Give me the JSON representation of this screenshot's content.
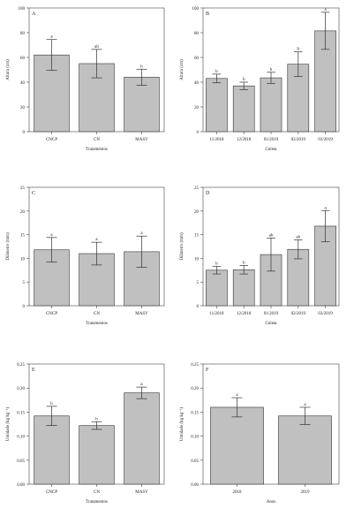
{
  "chart_data": [
    {
      "panel": "A",
      "type": "bar",
      "categories": [
        "CNCP",
        "CN",
        "MASV"
      ],
      "values": [
        62,
        55,
        44
      ],
      "errors": [
        12.5,
        11.5,
        6.5
      ],
      "letters": [
        "a",
        "ab",
        "b"
      ],
      "xlabel": "Tratamentos",
      "ylabel": "Altura (cm)",
      "ylim": [
        0,
        100
      ],
      "yticks": [
        "0",
        "20",
        "40",
        "60",
        "80",
        "100"
      ]
    },
    {
      "panel": "B",
      "type": "bar",
      "categories": [
        "11/2018",
        "12/2018",
        "01/2019",
        "02/2019",
        "03/2019"
      ],
      "values": [
        43,
        37,
        43.5,
        54.5,
        81.5
      ],
      "errors": [
        3.5,
        3,
        4.5,
        10,
        15
      ],
      "letters": [
        "b",
        "b",
        "b",
        "b",
        "a"
      ],
      "xlabel": "Coleta",
      "ylabel": "Altura (cm)",
      "ylim": [
        0,
        100
      ],
      "yticks": [
        "0",
        "20",
        "40",
        "60",
        "80",
        "100"
      ]
    },
    {
      "panel": "C",
      "type": "bar",
      "categories": [
        "CNCP",
        "CN",
        "MASV"
      ],
      "values": [
        11.8,
        11,
        11.4
      ],
      "errors": [
        2.6,
        2.4,
        3.3
      ],
      "letters": [
        "a",
        "a",
        "a"
      ],
      "xlabel": "Tratamentos",
      "ylabel": "Diâmetro (mm)",
      "ylim": [
        0,
        25
      ],
      "yticks": [
        "0",
        "5",
        "10",
        "15",
        "20",
        "25"
      ]
    },
    {
      "panel": "D",
      "type": "bar",
      "categories": [
        "11/2018",
        "12/2018",
        "01/2019",
        "02/2019",
        "03/2019"
      ],
      "values": [
        7.5,
        7.6,
        10.8,
        11.9,
        16.8
      ],
      "errors": [
        0.8,
        0.9,
        3.5,
        2,
        3.3
      ],
      "letters": [
        "b",
        "b",
        "ab",
        "ab",
        "a"
      ],
      "xlabel": "Coleta",
      "ylabel": "Diâmetro (mm)",
      "ylim": [
        0,
        25
      ],
      "yticks": [
        "0",
        "5",
        "10",
        "15",
        "20",
        "25"
      ]
    },
    {
      "panel": "E",
      "type": "bar",
      "categories": [
        "CNCP",
        "CN",
        "MASV"
      ],
      "values": [
        0.142,
        0.122,
        0.19
      ],
      "errors": [
        0.02,
        0.008,
        0.012
      ],
      "letters": [
        "b",
        "b",
        "a"
      ],
      "xlabel": "Tratamentos",
      "ylabel": "Umidade (kg kg⁻¹)",
      "ylim": [
        0,
        0.25
      ],
      "yticks": [
        "0.00",
        "0.05",
        "0.10",
        "0.15",
        "0.20",
        "0.25"
      ]
    },
    {
      "panel": "F",
      "type": "bar",
      "categories": [
        "2018",
        "2019"
      ],
      "values": [
        0.16,
        0.142
      ],
      "errors": [
        0.02,
        0.018
      ],
      "letters": [
        "a",
        "a"
      ],
      "xlabel": "Anos",
      "ylabel": "Umidade (kg kg⁻¹)",
      "ylim": [
        0,
        0.25
      ],
      "yticks": [
        "0.00",
        "0.05",
        "0.10",
        "0.15",
        "0.20",
        "0.25"
      ]
    }
  ]
}
